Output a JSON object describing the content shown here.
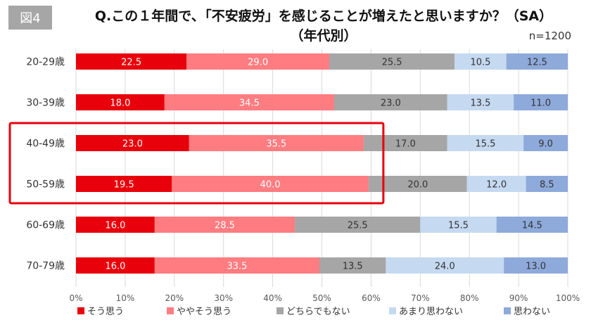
{
  "figure_badge": "図4",
  "title_line1": "Q.この１年間で､「不安疲労」を感じることが増えたと思いますか？（SA）",
  "title_line2": "（年代別）",
  "sample_size": "n=1200",
  "colors": [
    "#e8000b",
    "#ff7c80",
    "#a6a6a6",
    "#c5d9f1",
    "#8eaadb"
  ],
  "highlight_color": "#e8000b",
  "chart_data": {
    "type": "bar",
    "stacked": true,
    "orientation": "horizontal",
    "categories": [
      "20-29歳",
      "30-39歳",
      "40-49歳",
      "50-59歳",
      "60-69歳",
      "70-79歳"
    ],
    "series": [
      {
        "name": "そう思う",
        "values": [
          22.5,
          18.0,
          23.0,
          19.5,
          16.0,
          16.0
        ]
      },
      {
        "name": "ややそう思う",
        "values": [
          29.0,
          34.5,
          35.5,
          40.0,
          28.5,
          33.5
        ]
      },
      {
        "name": "どちらでもない",
        "values": [
          25.5,
          23.0,
          17.0,
          20.0,
          25.5,
          13.5
        ]
      },
      {
        "name": "あまり思わない",
        "values": [
          10.5,
          13.5,
          15.5,
          12.0,
          15.5,
          24.0
        ]
      },
      {
        "name": "思わない",
        "values": [
          12.5,
          11.0,
          9.0,
          8.5,
          14.5,
          13.0
        ]
      }
    ],
    "x_ticks": [
      "0%",
      "10%",
      "20%",
      "30%",
      "40%",
      "50%",
      "60%",
      "70%",
      "80%",
      "90%",
      "100%"
    ],
    "xlim": [
      0,
      100
    ],
    "grid": true,
    "legend_position": "bottom",
    "highlight_categories": [
      "40-49歳",
      "50-59歳"
    ],
    "highlight_range": [
      0,
      62.5
    ]
  }
}
